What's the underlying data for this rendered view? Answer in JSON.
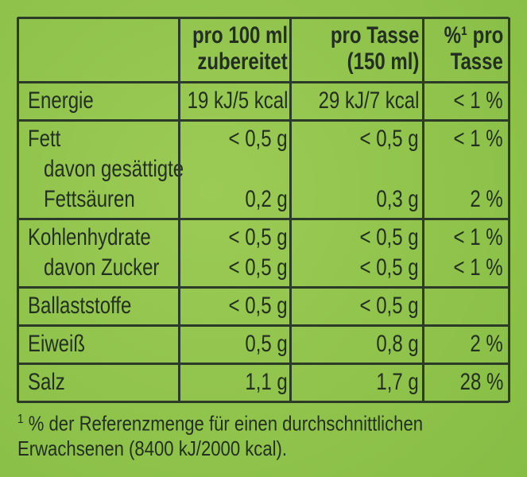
{
  "table": {
    "header": [
      [
        "pro 100 ml",
        "zubereitet"
      ],
      [
        "pro Tasse",
        "(150 ml)"
      ],
      [
        "%¹ pro",
        "Tasse"
      ]
    ],
    "groups": [
      {
        "lines": [
          {
            "cells": [
              "Energie",
              "19 kJ/5 kcal",
              "29 kJ/7 kcal",
              "< 1 %"
            ]
          }
        ]
      },
      {
        "lines": [
          {
            "cells": [
              "Fett",
              "< 0,5 g",
              "< 0,5 g",
              "< 1 %"
            ]
          },
          {
            "cells": [
              "davon gesättigte"
            ],
            "indent": true
          },
          {
            "cells": [
              "Fettsäuren",
              "0,2 g",
              "0,3 g",
              "2 %"
            ],
            "indent": true
          }
        ]
      },
      {
        "lines": [
          {
            "cells": [
              "Kohlenhydrate",
              "< 0,5 g",
              "< 0,5 g",
              "< 1 %"
            ]
          },
          {
            "cells": [
              "davon Zucker",
              "< 0,5 g",
              "< 0,5 g",
              "< 1 %"
            ],
            "indent": true
          }
        ]
      },
      {
        "lines": [
          {
            "cells": [
              "Ballaststoffe",
              "< 0,5 g",
              "< 0,5 g"
            ]
          }
        ]
      },
      {
        "lines": [
          {
            "cells": [
              "Eiweiß",
              "0,5 g",
              "0,8 g",
              "2 %"
            ]
          }
        ]
      },
      {
        "lines": [
          {
            "cells": [
              "Salz",
              "1,1 g",
              "1,7 g",
              "28 %"
            ]
          }
        ]
      }
    ]
  },
  "footnote": {
    "mark": "1",
    "lines": [
      "% der Referenzmenge für einen durchschnittlichen",
      "Erwachsenen (8400 kJ/2000 kcal)."
    ]
  }
}
